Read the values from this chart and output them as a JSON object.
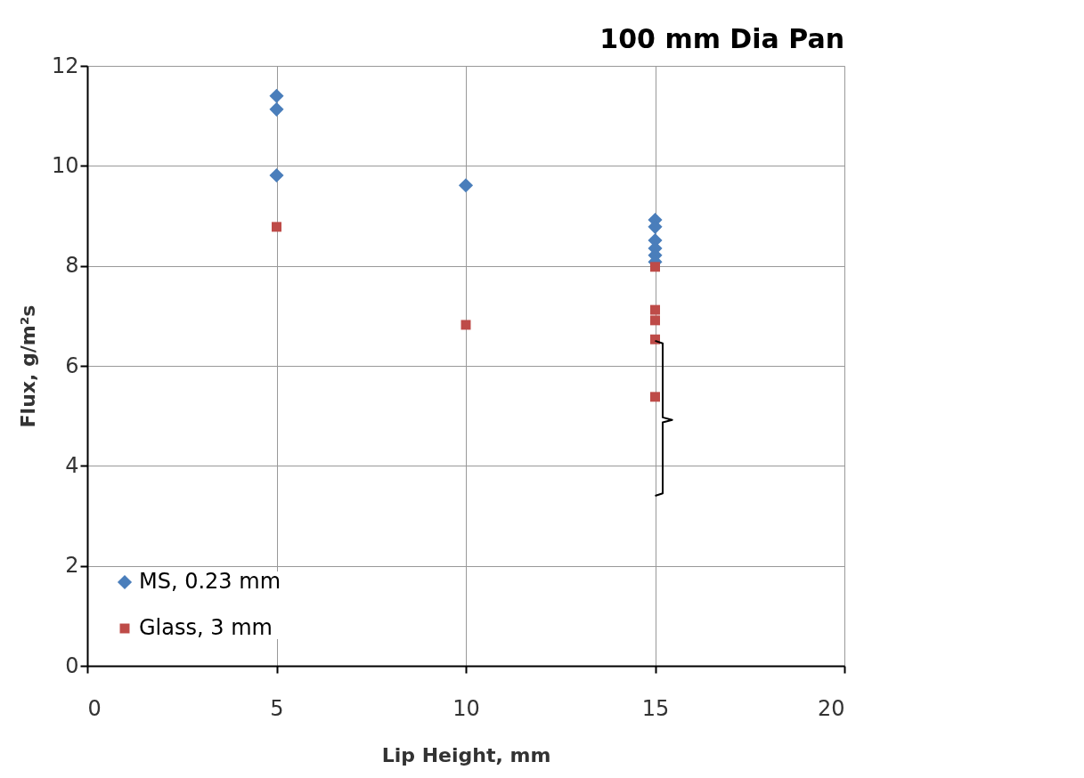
{
  "chart_data": {
    "type": "scatter",
    "xlabel": "Lip Height, mm",
    "ylabel": "Flux, g/m²s",
    "series": [
      {
        "name": "MS, 0.23 mm",
        "color": "#4a7ebb",
        "marker": "diamond",
        "x": [
          5,
          5,
          5,
          10,
          15,
          15,
          15,
          15,
          15,
          15
        ],
        "values": [
          11.4,
          11.13,
          9.81,
          9.61,
          8.92,
          8.78,
          8.51,
          8.35,
          8.21,
          8.08
        ]
      },
      {
        "name": "Glass, 3 mm",
        "color": "#be4b48",
        "marker": "square",
        "x": [
          5,
          10,
          15,
          15,
          15,
          15,
          15
        ],
        "values": [
          8.78,
          6.82,
          7.98,
          7.12,
          6.91,
          6.53,
          5.38
        ]
      }
    ],
    "xlim": [
      0,
      20
    ],
    "xticks": [
      0,
      5,
      10,
      15,
      20
    ],
    "ylim": [
      0,
      12
    ],
    "yticks": [
      0,
      2,
      4,
      6,
      8,
      10,
      12
    ],
    "grid": true,
    "legend": "bottom left",
    "annotations": [
      "100 mm Dia Pan"
    ]
  }
}
